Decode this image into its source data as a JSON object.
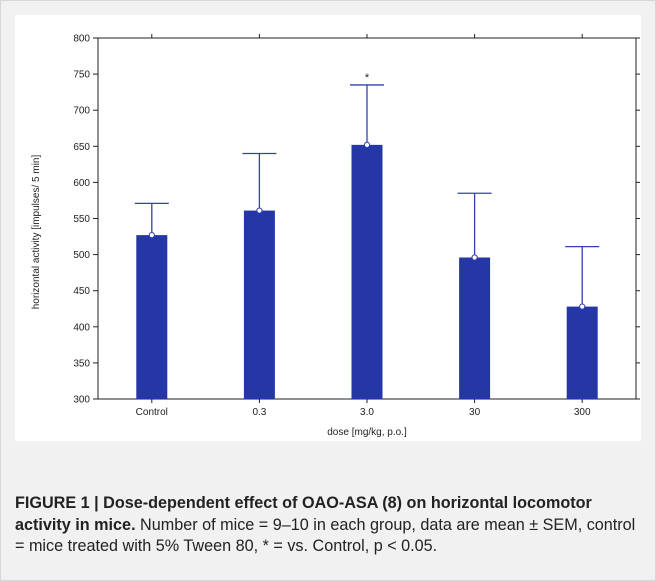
{
  "chart_data": {
    "type": "bar",
    "categories": [
      "Control",
      "0.3",
      "3.0",
      "30",
      "300"
    ],
    "values": [
      527,
      561,
      652,
      496,
      428
    ],
    "error_upper": [
      571,
      640,
      735,
      585,
      511
    ],
    "annotations": [
      {
        "category": "3.0",
        "text": "*"
      }
    ],
    "xlabel": "dose [mg/kg, p.o.]",
    "ylabel": "horizontal activity [impulses/ 5 min]",
    "ylim": [
      300,
      800
    ],
    "yticks": [
      300,
      350,
      400,
      450,
      500,
      550,
      600,
      650,
      700,
      750,
      800
    ],
    "grid": false,
    "bar_color": "#2536a6",
    "error_color": "#3540b0"
  },
  "caption": {
    "bold": "FIGURE 1 | Dose-dependent effect of OAO-ASA (8) on horizontal locomotor activity in mice.",
    "text": " Number of mice = 9–10 in each group, data are mean ± SEM, control = mice treated with 5% Tween 80, * = vs. Control, p < 0.05."
  }
}
